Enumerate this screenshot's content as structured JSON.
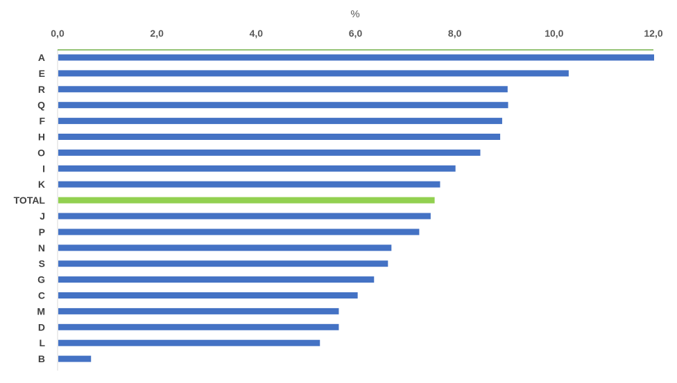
{
  "chart_data": {
    "type": "bar",
    "orientation": "horizontal",
    "unit_label": "%",
    "xlim": [
      0,
      12
    ],
    "xticks": [
      "0,0",
      "2,0",
      "4,0",
      "6,0",
      "8,0",
      "10,0",
      "12,0"
    ],
    "xtick_values": [
      0,
      2,
      4,
      6,
      8,
      10,
      12
    ],
    "axis_position": "top",
    "grid": false,
    "categories": [
      "A",
      "E",
      "R",
      "Q",
      "F",
      "H",
      "O",
      "I",
      "K",
      "TOTAL",
      "J",
      "P",
      "N",
      "S",
      "G",
      "C",
      "M",
      "D",
      "L",
      "B"
    ],
    "values": [
      12.0,
      10.28,
      9.05,
      9.06,
      8.94,
      8.9,
      8.5,
      8.0,
      7.69,
      7.58,
      7.5,
      7.27,
      6.71,
      6.64,
      6.36,
      6.03,
      5.65,
      5.65,
      5.27,
      0.66
    ],
    "colors": {
      "default": "#4472C4",
      "highlight": "#92D050",
      "axis_line": "#70AD47",
      "category_axis": "#D9D9D9"
    },
    "highlight_category": "TOTAL"
  }
}
